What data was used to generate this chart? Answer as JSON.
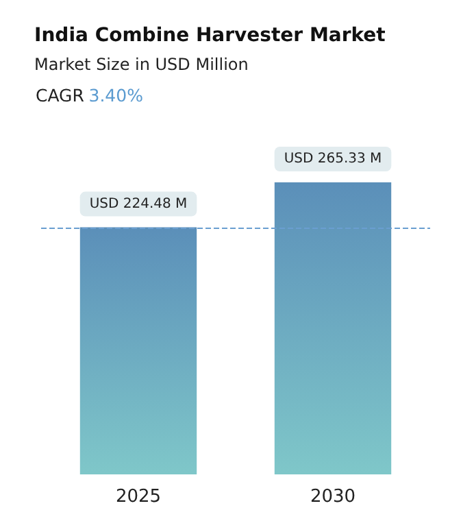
{
  "chart_data": {
    "type": "bar",
    "title": "India Combine Harvester Market",
    "subtitle": "Market Size in USD Million",
    "annotations": [
      "CAGR 3.40%"
    ],
    "categories": [
      "2025",
      "2030"
    ],
    "values": [
      224.48,
      265.33
    ],
    "value_labels": [
      "USD 224.48 M",
      "USD 265.33 M"
    ],
    "color": "#5b8fb9",
    "ref_lines": [
      {
        "axis": "y",
        "value": 224.48,
        "color": "#6a9ed0",
        "line_style": "dashed"
      }
    ]
  }
}
